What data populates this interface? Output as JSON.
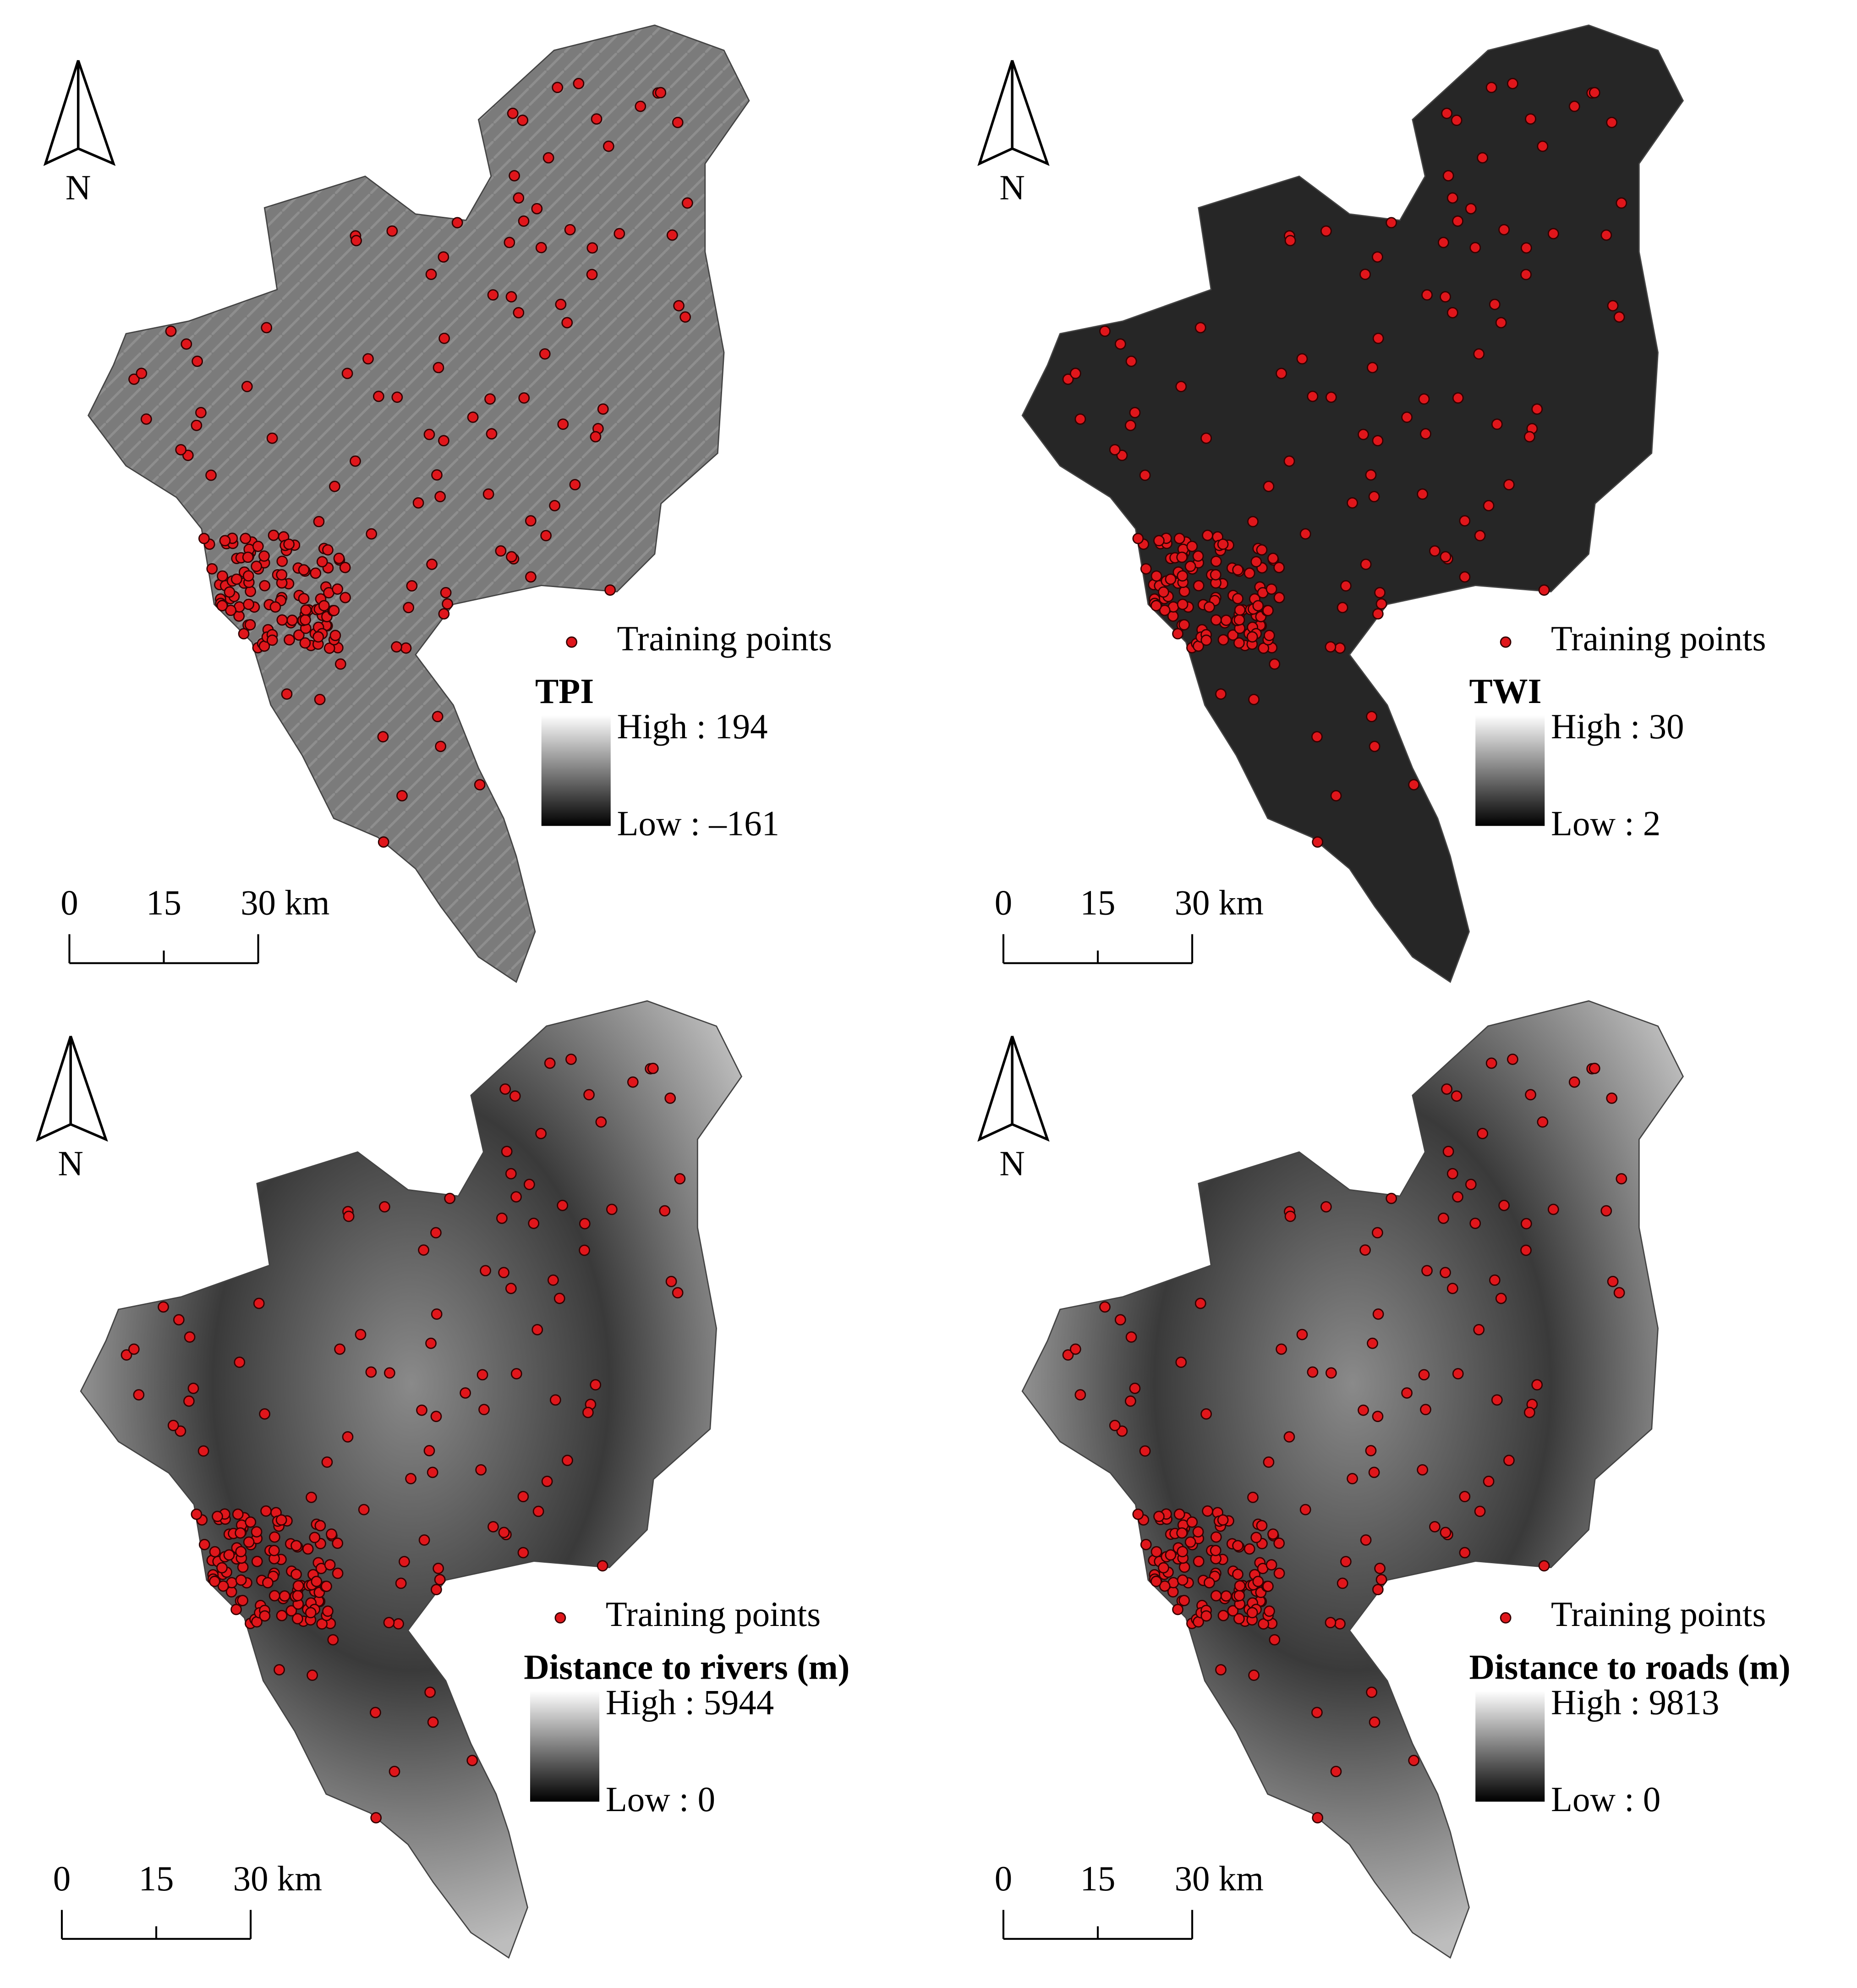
{
  "panels": [
    {
      "title": "TPI",
      "legend": "Training points",
      "high": "High : 194",
      "low": "Low : –161",
      "north": "N",
      "scale": [
        "0",
        "15",
        "30 km"
      ]
    },
    {
      "title": "TWI",
      "legend": "Training points",
      "high": "High : 30",
      "low": "Low : 2",
      "north": "N",
      "scale": [
        "0",
        "15",
        "30 km"
      ]
    },
    {
      "title": "Distance to rivers (m)",
      "legend": "Training points",
      "high": "High : 5944",
      "low": "Low : 0",
      "north": "N",
      "scale": [
        "0",
        "15",
        "30 km"
      ]
    },
    {
      "title": "Distance to roads (m)",
      "legend": "Training points",
      "high": "High : 9813",
      "low": "Low : 0",
      "north": "N",
      "scale": [
        "0",
        "15",
        "30 km"
      ]
    }
  ]
}
